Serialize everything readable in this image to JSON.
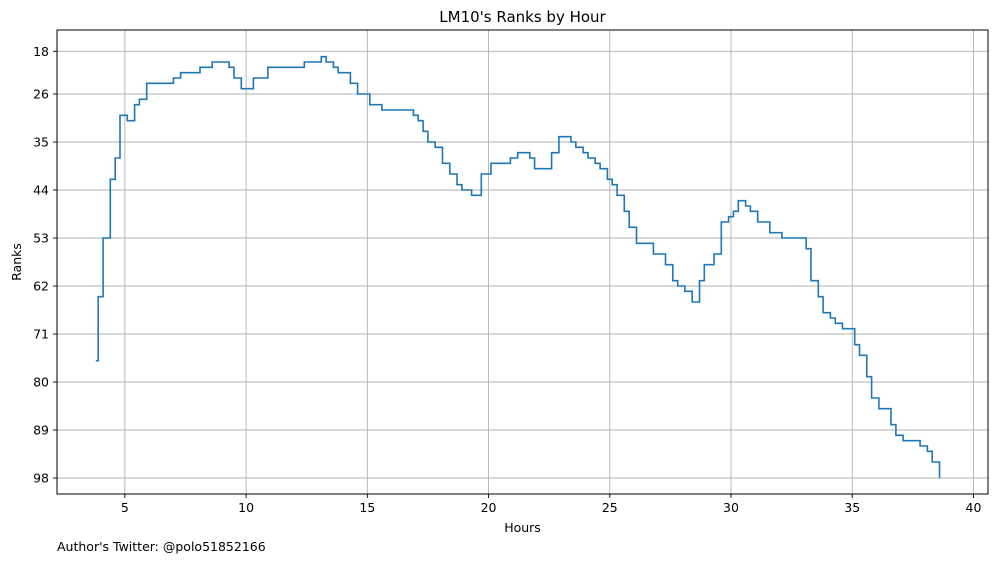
{
  "chart_data": {
    "type": "line",
    "step": true,
    "title": "LM10's Ranks by Hour",
    "xlabel": "Hours",
    "ylabel": "Ranks",
    "footnote": "Author's Twitter: @polo51852166",
    "xlim": [
      2.2,
      40.6
    ],
    "ylim": [
      101,
      14
    ],
    "y_inverted": true,
    "xticks": [
      5,
      10,
      15,
      20,
      25,
      30,
      35,
      40
    ],
    "yticks": [
      18,
      26,
      35,
      44,
      53,
      62,
      71,
      80,
      89,
      98
    ],
    "grid": true,
    "line_color": "#1f77b4",
    "grid_color": "#b0b0b0",
    "series": [
      {
        "x": [
          3.8,
          3.9,
          4.1,
          4.4,
          4.6,
          4.8,
          5.1,
          5.4,
          5.6,
          5.9,
          6.6,
          7.0,
          7.3,
          8.1,
          8.6,
          9.1,
          9.3,
          9.5,
          9.8,
          10.3,
          10.9,
          12.4,
          12.6,
          13.1,
          13.3,
          13.6,
          13.8,
          14.3,
          14.6,
          15.1,
          15.6,
          16.9,
          17.1,
          17.3,
          17.5,
          17.8,
          18.1,
          18.4,
          18.7,
          18.9,
          19.3,
          19.7,
          20.1,
          20.9,
          21.2,
          21.7,
          21.9,
          22.4,
          22.6,
          22.9,
          23.4,
          23.6,
          23.9,
          24.1,
          24.4,
          24.6,
          24.9,
          25.1,
          25.3,
          25.6,
          25.8,
          26.1,
          26.8,
          27.3,
          27.6,
          27.8,
          28.1,
          28.4,
          28.7,
          28.9,
          29.3,
          29.6,
          29.9,
          30.1,
          30.3,
          30.6,
          30.8,
          31.1,
          31.6,
          32.1,
          33.1,
          33.3,
          33.6,
          33.8,
          34.1,
          34.3,
          34.6,
          35.1,
          35.3,
          35.6,
          35.8,
          36.1,
          36.6,
          36.8,
          37.1,
          37.8,
          38.1,
          38.3,
          38.6
        ],
        "y": [
          76,
          64,
          53,
          42,
          38,
          30,
          31,
          28,
          27,
          24,
          24,
          23,
          22,
          21,
          20,
          20,
          21,
          23,
          25,
          23,
          21,
          20,
          20,
          19,
          20,
          21,
          22,
          24,
          26,
          28,
          29,
          30,
          31,
          33,
          35,
          36,
          39,
          41,
          43,
          44,
          45,
          41,
          39,
          38,
          37,
          38,
          40,
          40,
          37,
          34,
          35,
          36,
          37,
          38,
          39,
          40,
          42,
          43,
          45,
          48,
          51,
          54,
          56,
          58,
          61,
          62,
          63,
          65,
          61,
          58,
          56,
          50,
          49,
          48,
          46,
          47,
          48,
          50,
          52,
          53,
          55,
          61,
          64,
          67,
          68,
          69,
          70,
          73,
          75,
          79,
          83,
          85,
          88,
          90,
          91,
          92,
          93,
          95,
          98
        ]
      }
    ]
  }
}
